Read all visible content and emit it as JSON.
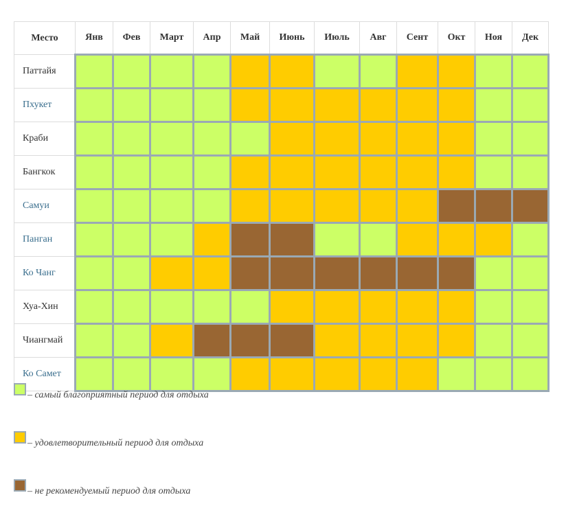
{
  "chart_data": {
    "type": "heatmap",
    "corner_label": "Место",
    "months": [
      "Янв",
      "Фев",
      "Март",
      "Апр",
      "Май",
      "Июнь",
      "Июль",
      "Авг",
      "Сент",
      "Окт",
      "Ноя",
      "Дек"
    ],
    "places": [
      {
        "name": "Паттайя",
        "link": false,
        "values": [
          1,
          1,
          1,
          1,
          2,
          2,
          1,
          1,
          2,
          2,
          1,
          1
        ]
      },
      {
        "name": "Пхукет",
        "link": true,
        "values": [
          1,
          1,
          1,
          1,
          2,
          2,
          2,
          2,
          2,
          2,
          1,
          1
        ]
      },
      {
        "name": "Краби",
        "link": false,
        "values": [
          1,
          1,
          1,
          1,
          1,
          2,
          2,
          2,
          2,
          2,
          1,
          1
        ]
      },
      {
        "name": "Бангкок",
        "link": false,
        "values": [
          1,
          1,
          1,
          1,
          2,
          2,
          2,
          2,
          2,
          2,
          1,
          1
        ]
      },
      {
        "name": "Самуи",
        "link": true,
        "values": [
          1,
          1,
          1,
          1,
          2,
          2,
          2,
          2,
          2,
          3,
          3,
          3
        ]
      },
      {
        "name": "Панган",
        "link": true,
        "values": [
          1,
          1,
          1,
          2,
          3,
          3,
          1,
          1,
          2,
          2,
          2,
          1
        ]
      },
      {
        "name": "Ко Чанг",
        "link": true,
        "values": [
          1,
          1,
          2,
          2,
          3,
          3,
          3,
          3,
          3,
          3,
          1,
          1
        ]
      },
      {
        "name": "Хуа-Хин",
        "link": false,
        "values": [
          1,
          1,
          1,
          1,
          1,
          2,
          2,
          2,
          2,
          2,
          1,
          1
        ]
      },
      {
        "name": "Чиангмай",
        "link": false,
        "values": [
          1,
          1,
          2,
          3,
          3,
          3,
          2,
          2,
          2,
          2,
          1,
          1
        ]
      },
      {
        "name": "Ко Самет",
        "link": true,
        "values": [
          1,
          1,
          1,
          1,
          2,
          2,
          2,
          2,
          2,
          1,
          1,
          1
        ]
      }
    ],
    "levels": [
      {
        "value": 1,
        "color": "#ccff66",
        "label": "– самый благоприятный период для отдыха"
      },
      {
        "value": 2,
        "color": "#ffcc00",
        "label": "– удовлетворительный период для отдыха"
      },
      {
        "value": 3,
        "color": "#996633",
        "label": "– не рекомендуемый период для отдыха"
      }
    ]
  }
}
